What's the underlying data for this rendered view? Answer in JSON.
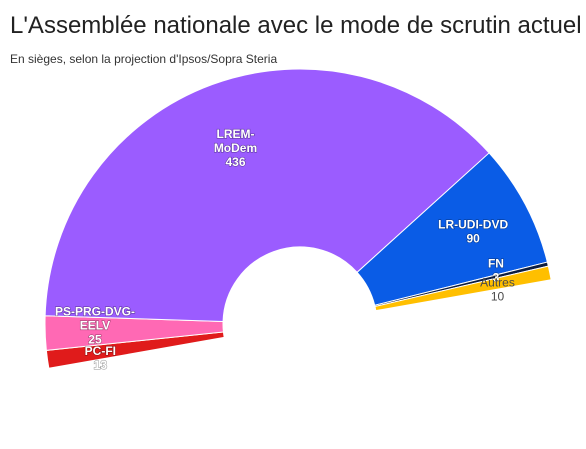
{
  "title": "L'Assemblée nationale avec le mode de scrutin actuel",
  "subtitle": "En sièges, selon la projection d'Ipsos/Sopra Steria",
  "chart_data": {
    "type": "pie",
    "variant": "semicircle (donut half)",
    "title": "L'Assemblée nationale avec le mode de scrutin actuel",
    "subtitle": "En sièges, selon la projection d'Ipsos/Sopra Steria",
    "unit": "sièges",
    "slices": [
      {
        "name": "PC-FI",
        "value": 13,
        "color": "#e01b1b"
      },
      {
        "name": "PS-PRG-DVG-EELV",
        "value": 25,
        "color": "#ff69b4"
      },
      {
        "name": "LREM-MoDem",
        "value": 436,
        "color": "#9b5cff"
      },
      {
        "name": "LR-UDI-DVD",
        "value": 90,
        "color": "#0a5ce6"
      },
      {
        "name": "FN",
        "value": 3,
        "color": "#0d1e40"
      },
      {
        "name": "Autres",
        "value": 10,
        "color": "#ffbf00"
      }
    ]
  }
}
